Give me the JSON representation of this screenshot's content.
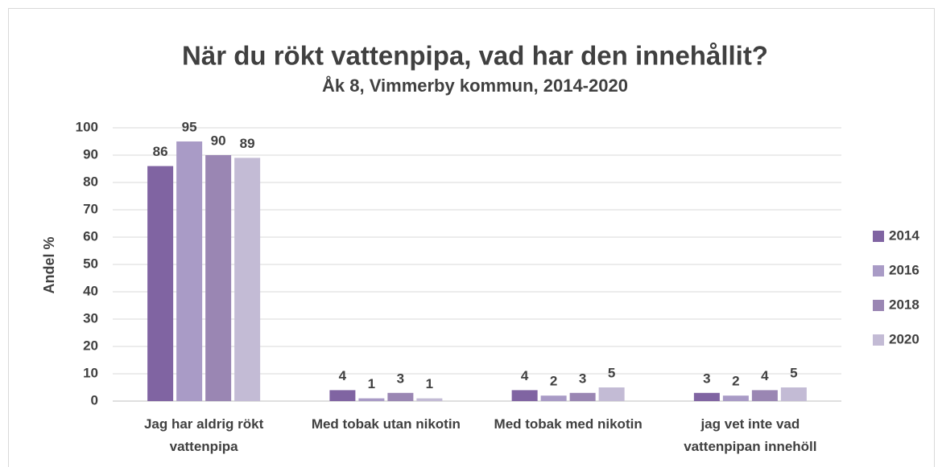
{
  "chart_data": {
    "type": "bar",
    "title": "När du rökt vattenpipa, vad har den innehållit?",
    "subtitle": "Åk 8, Vimmerby kommun, 2014-2020",
    "y_label": "Andel %",
    "categories": [
      "Jag har aldrig rökt vattenpipa",
      "Med tobak utan nikotin",
      "Med tobak med nikotin",
      "jag vet inte vad vattenpipan innehöll"
    ],
    "series": [
      {
        "name": "2014",
        "color": "#8064a2",
        "values": [
          86,
          4,
          4,
          3
        ]
      },
      {
        "name": "2016",
        "color": "#a99bc6",
        "values": [
          95,
          1,
          2,
          2
        ]
      },
      {
        "name": "2018",
        "color": "#9a86b3",
        "values": [
          90,
          3,
          3,
          4
        ]
      },
      {
        "name": "2020",
        "color": "#c3bbd5",
        "values": [
          89,
          1,
          5,
          5
        ]
      }
    ],
    "ylim": [
      0,
      100
    ],
    "yticks": [
      0,
      10,
      20,
      30,
      40,
      50,
      60,
      70,
      80,
      90,
      100
    ],
    "grid": true,
    "legend": "right"
  }
}
